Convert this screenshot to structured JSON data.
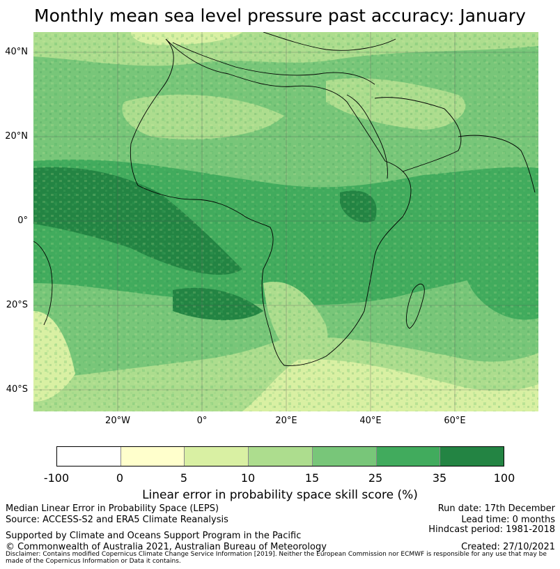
{
  "title": "Monthly mean sea level pressure past accuracy: January",
  "map": {
    "lat_labels": [
      "40°N",
      "20°N",
      "0°",
      "20°S",
      "40°S"
    ],
    "lon_labels": [
      "20°W",
      "0°",
      "20°E",
      "40°E",
      "60°E"
    ]
  },
  "colorbar": {
    "ticks": [
      "-100",
      "0",
      "5",
      "10",
      "15",
      "25",
      "35",
      "100"
    ],
    "colors": [
      "#ffffff",
      "#ffffcc",
      "#d9f0a3",
      "#addd8e",
      "#78c679",
      "#41ab5d",
      "#238443"
    ],
    "label": "Linear error in probability space skill score (%)"
  },
  "footer": {
    "left1": "Median Linear Error in Probability Space (LEPS)",
    "left2": "Source: ACCESS-S2 and ERA5 Climate Reanalysis",
    "left3": "Supported by Climate and Oceans Support Program in the Pacific",
    "left4": "© Commonwealth of Australia 2021, Australian Bureau of Meteorology",
    "right1": "Run date: 17th December",
    "right2": "Lead time: 0 months",
    "right3": "Hindcast period: 1981-2018",
    "right4": "Created: 27/10/2021",
    "disclaimer": "Disclaimer: Contains modified Copernicus Climate Change Service Information [2019]. Neither the European Commission nor ECMWF is responsible for any use that may be made of the Copernicus Information or Data it contains."
  }
}
